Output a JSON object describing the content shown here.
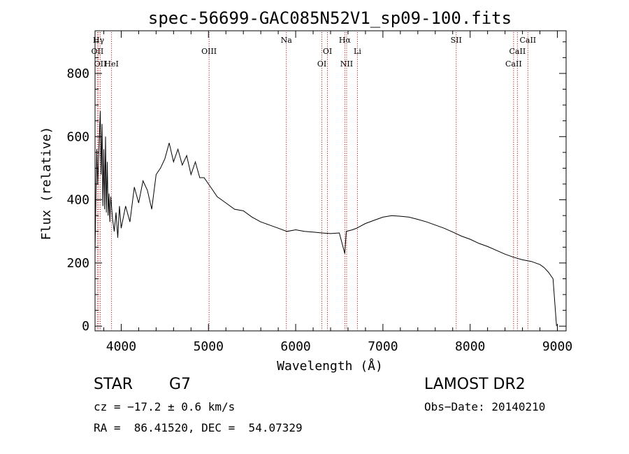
{
  "chart_data": {
    "type": "line",
    "title": "spec-56699-GAC085N52V1_sp09-100.fits",
    "xlabel": "Wavelength (Å)",
    "ylabel": "Flux (relative)",
    "xlim": [
      3700,
      9100
    ],
    "ylim": [
      -15,
      935
    ],
    "xticks": [
      4000,
      5000,
      6000,
      7000,
      8000,
      9000
    ],
    "yticks": [
      0,
      200,
      400,
      600,
      800
    ],
    "grid": false,
    "series": [
      {
        "values": [
          {
            "x": 3700,
            "y": 230
          },
          {
            "x": 3710,
            "y": 420
          },
          {
            "x": 3720,
            "y": 560
          },
          {
            "x": 3730,
            "y": 450
          },
          {
            "x": 3740,
            "y": 520
          },
          {
            "x": 3750,
            "y": 600
          },
          {
            "x": 3760,
            "y": 680
          },
          {
            "x": 3770,
            "y": 480
          },
          {
            "x": 3780,
            "y": 640
          },
          {
            "x": 3790,
            "y": 380
          },
          {
            "x": 3800,
            "y": 560
          },
          {
            "x": 3810,
            "y": 370
          },
          {
            "x": 3820,
            "y": 600
          },
          {
            "x": 3830,
            "y": 360
          },
          {
            "x": 3840,
            "y": 520
          },
          {
            "x": 3850,
            "y": 350
          },
          {
            "x": 3860,
            "y": 420
          },
          {
            "x": 3870,
            "y": 330
          },
          {
            "x": 3880,
            "y": 410
          },
          {
            "x": 3900,
            "y": 340
          },
          {
            "x": 3920,
            "y": 300
          },
          {
            "x": 3940,
            "y": 360
          },
          {
            "x": 3960,
            "y": 280
          },
          {
            "x": 3980,
            "y": 380
          },
          {
            "x": 4000,
            "y": 310
          },
          {
            "x": 4050,
            "y": 380
          },
          {
            "x": 4100,
            "y": 330
          },
          {
            "x": 4150,
            "y": 440
          },
          {
            "x": 4200,
            "y": 390
          },
          {
            "x": 4250,
            "y": 460
          },
          {
            "x": 4300,
            "y": 430
          },
          {
            "x": 4350,
            "y": 370
          },
          {
            "x": 4400,
            "y": 480
          },
          {
            "x": 4450,
            "y": 500
          },
          {
            "x": 4500,
            "y": 530
          },
          {
            "x": 4550,
            "y": 580
          },
          {
            "x": 4600,
            "y": 520
          },
          {
            "x": 4650,
            "y": 560
          },
          {
            "x": 4700,
            "y": 510
          },
          {
            "x": 4750,
            "y": 540
          },
          {
            "x": 4800,
            "y": 480
          },
          {
            "x": 4850,
            "y": 520
          },
          {
            "x": 4900,
            "y": 470
          },
          {
            "x": 4950,
            "y": 470
          },
          {
            "x": 5000,
            "y": 450
          },
          {
            "x": 5050,
            "y": 430
          },
          {
            "x": 5100,
            "y": 410
          },
          {
            "x": 5150,
            "y": 400
          },
          {
            "x": 5200,
            "y": 390
          },
          {
            "x": 5300,
            "y": 370
          },
          {
            "x": 5400,
            "y": 365
          },
          {
            "x": 5500,
            "y": 345
          },
          {
            "x": 5600,
            "y": 330
          },
          {
            "x": 5700,
            "y": 320
          },
          {
            "x": 5800,
            "y": 310
          },
          {
            "x": 5900,
            "y": 300
          },
          {
            "x": 6000,
            "y": 305
          },
          {
            "x": 6100,
            "y": 300
          },
          {
            "x": 6200,
            "y": 298
          },
          {
            "x": 6300,
            "y": 295
          },
          {
            "x": 6400,
            "y": 293
          },
          {
            "x": 6500,
            "y": 295
          },
          {
            "x": 6563,
            "y": 230
          },
          {
            "x": 6580,
            "y": 300
          },
          {
            "x": 6650,
            "y": 305
          },
          {
            "x": 6700,
            "y": 310
          },
          {
            "x": 6800,
            "y": 325
          },
          {
            "x": 6900,
            "y": 335
          },
          {
            "x": 7000,
            "y": 345
          },
          {
            "x": 7100,
            "y": 350
          },
          {
            "x": 7200,
            "y": 348
          },
          {
            "x": 7300,
            "y": 345
          },
          {
            "x": 7400,
            "y": 338
          },
          {
            "x": 7500,
            "y": 330
          },
          {
            "x": 7600,
            "y": 320
          },
          {
            "x": 7700,
            "y": 310
          },
          {
            "x": 7800,
            "y": 298
          },
          {
            "x": 7900,
            "y": 285
          },
          {
            "x": 8000,
            "y": 275
          },
          {
            "x": 8100,
            "y": 262
          },
          {
            "x": 8200,
            "y": 252
          },
          {
            "x": 8300,
            "y": 240
          },
          {
            "x": 8400,
            "y": 228
          },
          {
            "x": 8500,
            "y": 218
          },
          {
            "x": 8600,
            "y": 210
          },
          {
            "x": 8700,
            "y": 205
          },
          {
            "x": 8800,
            "y": 195
          },
          {
            "x": 8850,
            "y": 185
          },
          {
            "x": 8900,
            "y": 170
          },
          {
            "x": 8950,
            "y": 150
          },
          {
            "x": 8990,
            "y": 0
          }
        ]
      }
    ],
    "lines": [
      {
        "label": "OII",
        "x": 3727,
        "row": 2
      },
      {
        "label": "Hγ",
        "x": 3740,
        "row": 1
      },
      {
        "label": "OII",
        "x": 3760,
        "row": 3
      },
      {
        "label": "HeI",
        "x": 3889,
        "row": 3
      },
      {
        "label": "OIII",
        "x": 5007,
        "row": 2
      },
      {
        "label": "Na",
        "x": 5893,
        "row": 1
      },
      {
        "label": "OI",
        "x": 6300,
        "row": 3
      },
      {
        "label": "OI",
        "x": 6364,
        "row": 2
      },
      {
        "label": "Hα",
        "x": 6563,
        "row": 1
      },
      {
        "label": "NII",
        "x": 6584,
        "row": 3
      },
      {
        "label": "Li",
        "x": 6708,
        "row": 2
      },
      {
        "label": "SII",
        "x": 7840,
        "row": 1
      },
      {
        "label": "CaII",
        "x": 8498,
        "row": 3
      },
      {
        "label": "CaII",
        "x": 8542,
        "row": 2
      },
      {
        "label": "CaII",
        "x": 8662,
        "row": 1
      }
    ]
  },
  "info": {
    "object_class": "STAR",
    "subclass": "G7",
    "survey": "LAMOST DR2",
    "cz": "cz = −17.2 ± 0.6 km/s",
    "obs_date": "Obs−Date: 20140210",
    "coords": "RA =  86.41520, DEC =  54.07329"
  }
}
